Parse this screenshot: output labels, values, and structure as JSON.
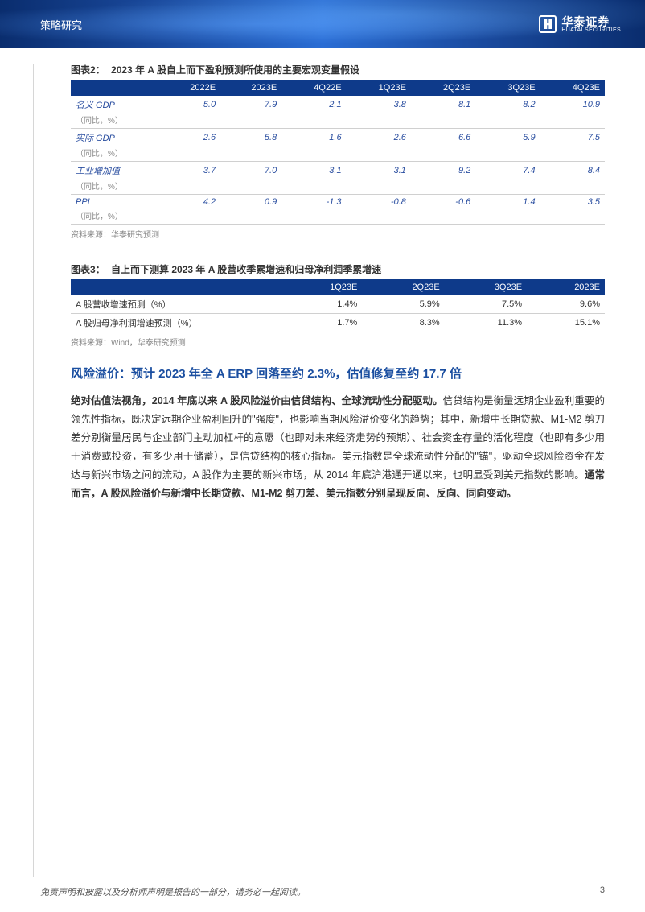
{
  "header": {
    "section_title": "策略研究",
    "logo_cn": "华泰证券",
    "logo_en": "HUATAI SECURITIES"
  },
  "table2": {
    "caption_num": "图表2：",
    "caption_txt": "2023 年 A 股自上而下盈利预测所使用的主要宏观变量假设",
    "header_bg": "#0e3a8a",
    "columns": [
      "",
      "2022E",
      "2023E",
      "4Q22E",
      "1Q23E",
      "2Q23E",
      "3Q23E",
      "4Q23E"
    ],
    "rows": [
      {
        "label": "名义 GDP",
        "sub": "（同比，%）",
        "values": [
          "5.0",
          "7.9",
          "2.1",
          "3.8",
          "8.1",
          "8.2",
          "10.9"
        ],
        "styles": [
          "red",
          "red",
          "blue",
          "blue",
          "blue",
          "blue",
          "blue"
        ]
      },
      {
        "label": "实际 GDP",
        "sub": "（同比，%）",
        "values": [
          "2.6",
          "5.8",
          "1.6",
          "2.6",
          "6.6",
          "5.9",
          "7.5"
        ],
        "styles": [
          "red",
          "red",
          "blue",
          "blue",
          "blue",
          "blue",
          "blue"
        ]
      },
      {
        "label": "工业增加值",
        "sub": "（同比，%）",
        "values": [
          "3.7",
          "7.0",
          "3.1",
          "3.1",
          "9.2",
          "7.4",
          "8.4"
        ],
        "styles": [
          "red",
          "red",
          "blue",
          "blue",
          "blue",
          "blue",
          "blue"
        ]
      },
      {
        "label": "PPI",
        "sub": "（同比，%）",
        "values": [
          "4.2",
          "0.9",
          "-1.3",
          "-0.8",
          "-0.6",
          "1.4",
          "3.5"
        ],
        "styles": [
          "red",
          "red",
          "blue",
          "blue",
          "blue",
          "blue",
          "blue"
        ]
      }
    ],
    "source": "资料来源：华泰研究预测"
  },
  "table3": {
    "caption_num": "图表3：",
    "caption_txt": "自上而下测算 2023 年 A 股营收季累增速和归母净利润季累增速",
    "header_bg": "#0e3a8a",
    "columns": [
      "",
      "1Q23E",
      "2Q23E",
      "3Q23E",
      "2023E"
    ],
    "rows": [
      {
        "label": "A 股营收增速预测（%）",
        "values": [
          "1.4%",
          "5.9%",
          "7.5%",
          "9.6%"
        ]
      },
      {
        "label": "A 股归母净利润增速预测（%）",
        "values": [
          "1.7%",
          "8.3%",
          "11.3%",
          "15.1%"
        ]
      }
    ],
    "source": "资料来源：Wind，华泰研究预测"
  },
  "section": {
    "heading": "风险溢价：预计 2023 年全 A ERP 回落至约 2.3%，估值修复至约 17.7 倍",
    "para_bold_lead": "绝对估值法视角，2014 年底以来 A 股风险溢价由信贷结构、全球流动性分配驱动。",
    "para_body": "信贷结构是衡量远期企业盈利重要的领先性指标，既决定远期企业盈利回升的\"强度\"，也影响当期风险溢价变化的趋势；其中，新增中长期贷款、M1-M2 剪刀差分别衡量居民与企业部门主动加杠杆的意愿（也即对未来经济走势的预期）、社会资金存量的活化程度（也即有多少用于消费或投资，有多少用于储蓄），是信贷结构的核心指标。美元指数是全球流动性分配的\"锚\"，驱动全球风险资金在发达与新兴市场之间的流动，A 股作为主要的新兴市场，从 2014 年底沪港通开通以来，也明显受到美元指数的影响。",
    "para_bold_tail": "通常而言，A 股风险溢价与新增中长期贷款、M1-M2 剪刀差、美元指数分别呈现反向、反向、同向变动。"
  },
  "footer": {
    "disclaimer": "免责声明和披露以及分析师声明是报告的一部分，请务必一起阅读。",
    "page": "3"
  },
  "colors": {
    "header_gradient_from": "#0a2d6e",
    "header_gradient_to": "#2a6dd4",
    "table_header": "#0e3a8a",
    "heading_blue": "#1a4ea0",
    "red_val": "#c00000",
    "blue_val": "#2a4ea0",
    "border": "#d0d0d0",
    "gray_text": "#888888",
    "side_line": "#d6d6d6"
  }
}
